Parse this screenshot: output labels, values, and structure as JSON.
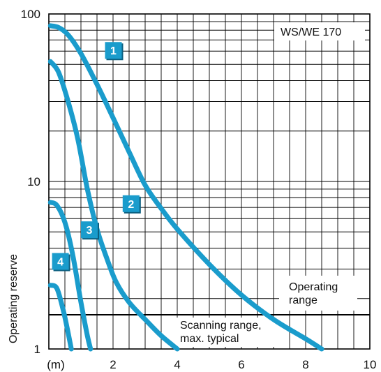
{
  "chart_data": {
    "type": "line",
    "title": "WS/WE 170",
    "xlabel": "",
    "ylabel": "Operating reserve",
    "x_unit_label": "(m)",
    "xlim": [
      0,
      10
    ],
    "ylim": [
      1,
      100
    ],
    "y_scale": "log",
    "x_ticks": [
      {
        "value": 2,
        "label": "2"
      },
      {
        "value": 4,
        "label": "4"
      },
      {
        "value": 6,
        "label": "6"
      },
      {
        "value": 8,
        "label": "8"
      },
      {
        "value": 10,
        "label": "10"
      }
    ],
    "y_ticks": [
      {
        "value": 1,
        "label": "1"
      },
      {
        "value": 10,
        "label": "10"
      },
      {
        "value": 100,
        "label": "100"
      }
    ],
    "grid": true,
    "threshold": {
      "y": 1.6,
      "label_above": "Operating range",
      "label_below": "Scanning range, max. typical"
    },
    "line_color": "#1a9ccc",
    "badge_color": "#1a9ccc",
    "series": [
      {
        "name": "1",
        "x": [
          0.05,
          0.3,
          0.6,
          1.0,
          1.5,
          2.0,
          2.5,
          3.0,
          3.5,
          4.0,
          5.0,
          6.0,
          7.0,
          8.0,
          8.5
        ],
        "y": [
          85,
          83,
          75,
          58,
          38,
          24,
          15,
          9.5,
          6.9,
          5.2,
          3.2,
          2.1,
          1.5,
          1.15,
          1.0
        ]
      },
      {
        "name": "2",
        "x": [
          0.05,
          0.3,
          0.6,
          0.9,
          1.2,
          1.5,
          1.8,
          2.1,
          2.5,
          3.0,
          3.5,
          4.0
        ],
        "y": [
          52,
          45,
          30,
          18,
          9,
          5.2,
          3.5,
          2.5,
          1.9,
          1.5,
          1.2,
          1.0
        ]
      },
      {
        "name": "3",
        "x": [
          0.05,
          0.25,
          0.5,
          0.75,
          1.0,
          1.2,
          1.3
        ],
        "y": [
          7.5,
          7.2,
          5.7,
          3.6,
          1.9,
          1.2,
          1.0
        ]
      },
      {
        "name": "4",
        "x": [
          0.05,
          0.25,
          0.45,
          0.6,
          0.7
        ],
        "y": [
          2.4,
          2.3,
          1.7,
          1.25,
          1.0
        ]
      }
    ],
    "badges": [
      {
        "label": "1",
        "x": 1.75,
        "y": 60
      },
      {
        "label": "2",
        "x": 2.3,
        "y": 7.3
      },
      {
        "label": "3",
        "x": 1.0,
        "y": 5.1
      },
      {
        "label": "4",
        "x": 0.1,
        "y": 3.3
      }
    ]
  }
}
